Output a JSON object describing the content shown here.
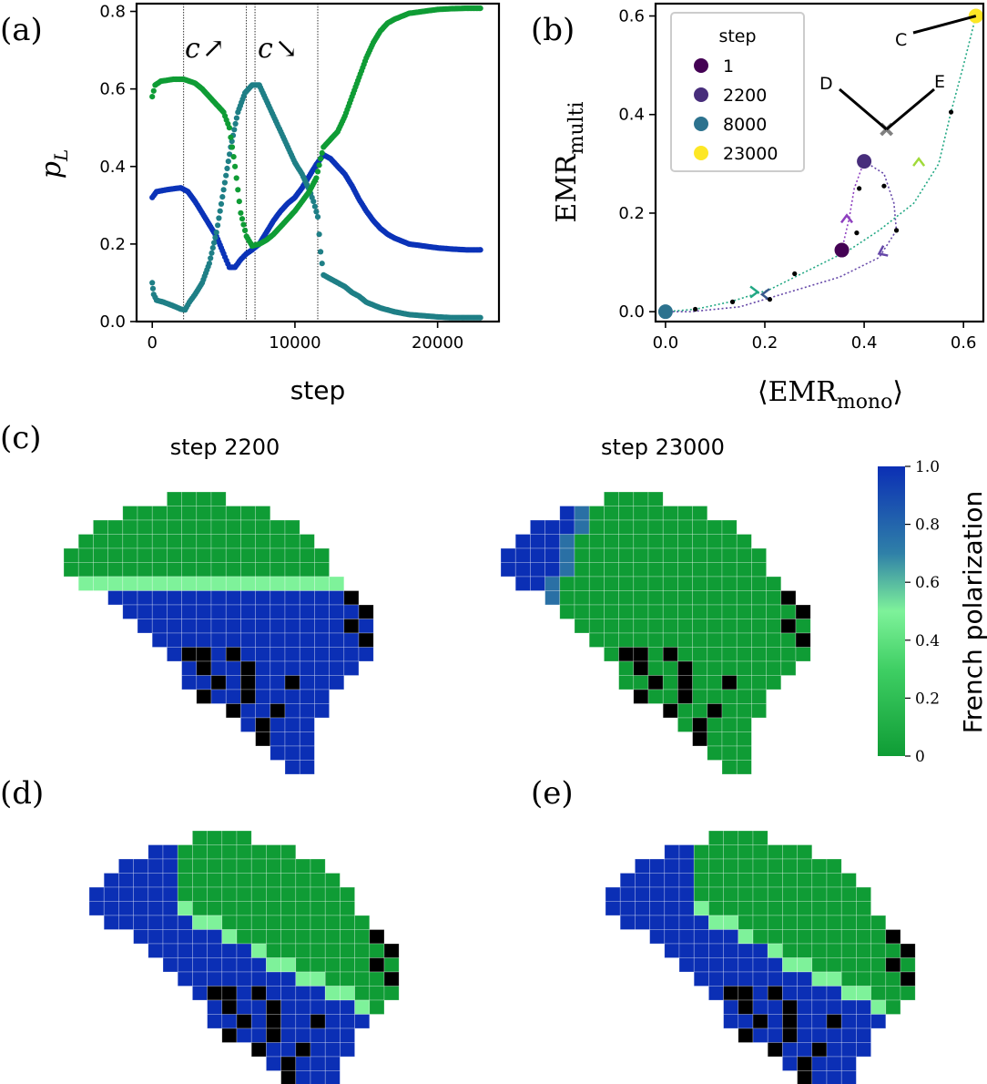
{
  "panel_labels": [
    "(a)",
    "(b)",
    "(c)",
    "(d)",
    "(e)"
  ],
  "colors": {
    "blue": "#0b33b8",
    "teal": "#1f7f86",
    "green": "#0f9c35",
    "grey": "#808080",
    "cmap_low": "#0f9c35",
    "cmap_mid": "#7ef29a",
    "cmap_high": "#0b2fb5",
    "nodata": "#000000"
  },
  "chart_data": [
    {
      "id": "a",
      "type": "scatter",
      "title": "",
      "xlabel": "step",
      "ylabel_main": "p",
      "ylabel_sub": "L",
      "xlim": [
        -1100,
        24300
      ],
      "ylim": [
        0.0,
        0.82
      ],
      "xticks": [
        "0",
        "10000",
        "20000"
      ],
      "xtick_values": [
        0,
        10000,
        20000
      ],
      "yticks": [
        "0.0",
        "0.2",
        "0.4",
        "0.6",
        "0.8"
      ],
      "ytick_values": [
        0.0,
        0.2,
        0.4,
        0.6,
        0.8
      ],
      "vlines": [
        2200,
        6600,
        7200,
        11600
      ],
      "annotations": [
        {
          "text_main": "c",
          "arrow": "↗",
          "x": 2600,
          "y": 0.74
        },
        {
          "text_main": "c",
          "arrow": "↘",
          "x": 7500,
          "y": 0.74
        }
      ],
      "series": [
        {
          "color_key": "blue",
          "points": [
            [
              0,
              0.32
            ],
            [
              300,
              0.335
            ],
            [
              1000,
              0.34
            ],
            [
              2000,
              0.345
            ],
            [
              2500,
              0.335
            ],
            [
              3000,
              0.31
            ],
            [
              3500,
              0.28
            ],
            [
              4000,
              0.25
            ],
            [
              4500,
              0.22
            ],
            [
              5000,
              0.175
            ],
            [
              5400,
              0.14
            ],
            [
              5800,
              0.14
            ],
            [
              6200,
              0.16
            ],
            [
              6600,
              0.175
            ],
            [
              7000,
              0.185
            ],
            [
              7500,
              0.2
            ],
            [
              8000,
              0.23
            ],
            [
              8500,
              0.26
            ],
            [
              9000,
              0.285
            ],
            [
              9500,
              0.305
            ],
            [
              10000,
              0.32
            ],
            [
              10500,
              0.345
            ],
            [
              11000,
              0.375
            ],
            [
              11500,
              0.405
            ],
            [
              12000,
              0.43
            ],
            [
              12500,
              0.42
            ],
            [
              13000,
              0.4
            ],
            [
              13500,
              0.38
            ],
            [
              14000,
              0.35
            ],
            [
              14500,
              0.315
            ],
            [
              15000,
              0.285
            ],
            [
              15500,
              0.26
            ],
            [
              16000,
              0.24
            ],
            [
              16500,
              0.225
            ],
            [
              17000,
              0.215
            ],
            [
              18000,
              0.2
            ],
            [
              19000,
              0.195
            ],
            [
              20000,
              0.19
            ],
            [
              21000,
              0.187
            ],
            [
              22000,
              0.185
            ],
            [
              23000,
              0.185
            ]
          ]
        },
        {
          "color_key": "teal",
          "points": [
            [
              0,
              0.1
            ],
            [
              100,
              0.07
            ],
            [
              300,
              0.055
            ],
            [
              800,
              0.05
            ],
            [
              1500,
              0.04
            ],
            [
              2000,
              0.032
            ],
            [
              2300,
              0.03
            ],
            [
              2600,
              0.05
            ],
            [
              3000,
              0.07
            ],
            [
              3500,
              0.1
            ],
            [
              4000,
              0.15
            ],
            [
              4500,
              0.23
            ],
            [
              5000,
              0.34
            ],
            [
              5500,
              0.45
            ],
            [
              6000,
              0.54
            ],
            [
              6500,
              0.59
            ],
            [
              7000,
              0.61
            ],
            [
              7500,
              0.61
            ],
            [
              8000,
              0.57
            ],
            [
              8500,
              0.53
            ],
            [
              9000,
              0.49
            ],
            [
              9500,
              0.45
            ],
            [
              10000,
              0.41
            ],
            [
              10500,
              0.38
            ],
            [
              11000,
              0.34
            ],
            [
              11300,
              0.31
            ],
            [
              11600,
              0.27
            ],
            [
              11800,
              0.18
            ],
            [
              12000,
              0.12
            ],
            [
              12500,
              0.11
            ],
            [
              13000,
              0.1
            ],
            [
              13500,
              0.09
            ],
            [
              14000,
              0.075
            ],
            [
              14500,
              0.065
            ],
            [
              15000,
              0.05
            ],
            [
              16000,
              0.035
            ],
            [
              17000,
              0.025
            ],
            [
              18000,
              0.018
            ],
            [
              20000,
              0.012
            ],
            [
              21000,
              0.01
            ],
            [
              23000,
              0.01
            ]
          ]
        },
        {
          "color_key": "green",
          "points": [
            [
              0,
              0.58
            ],
            [
              200,
              0.61
            ],
            [
              600,
              0.62
            ],
            [
              1500,
              0.625
            ],
            [
              2200,
              0.625
            ],
            [
              3000,
              0.615
            ],
            [
              3500,
              0.6
            ],
            [
              4000,
              0.58
            ],
            [
              4500,
              0.56
            ],
            [
              5000,
              0.54
            ],
            [
              5400,
              0.5
            ],
            [
              5800,
              0.4
            ],
            [
              6200,
              0.28
            ],
            [
              6600,
              0.22
            ],
            [
              7000,
              0.195
            ],
            [
              7500,
              0.2
            ],
            [
              8000,
              0.21
            ],
            [
              8500,
              0.225
            ],
            [
              9000,
              0.245
            ],
            [
              9500,
              0.265
            ],
            [
              10000,
              0.285
            ],
            [
              10500,
              0.31
            ],
            [
              11000,
              0.335
            ],
            [
              11500,
              0.37
            ],
            [
              11800,
              0.42
            ],
            [
              12000,
              0.45
            ],
            [
              12500,
              0.47
            ],
            [
              13000,
              0.49
            ],
            [
              13500,
              0.53
            ],
            [
              14000,
              0.58
            ],
            [
              14500,
              0.63
            ],
            [
              15000,
              0.68
            ],
            [
              15500,
              0.72
            ],
            [
              16000,
              0.75
            ],
            [
              16500,
              0.77
            ],
            [
              17000,
              0.78
            ],
            [
              18000,
              0.795
            ],
            [
              19000,
              0.8
            ],
            [
              20000,
              0.805
            ],
            [
              21000,
              0.807
            ],
            [
              22000,
              0.808
            ],
            [
              23000,
              0.808
            ]
          ]
        }
      ]
    },
    {
      "id": "b",
      "type": "scatter",
      "title": "",
      "xlabel": "⟨EMR",
      "xlabel_sub": "mono",
      "xlabel_close": "⟩",
      "ylabel": "EMR",
      "ylabel_sub": "multi",
      "xlim": [
        -0.02,
        0.64
      ],
      "ylim": [
        -0.02,
        0.625
      ],
      "xticks": [
        "0.0",
        "0.2",
        "0.4",
        "0.6"
      ],
      "xtick_values": [
        0.0,
        0.2,
        0.4,
        0.6
      ],
      "yticks": [
        "0.0",
        "0.2",
        "0.4",
        "0.6"
      ],
      "ytick_values": [
        0.0,
        0.2,
        0.4,
        0.6
      ],
      "legend": {
        "title": "step",
        "placement": "top-left",
        "entries": [
          "1",
          "2200",
          "8000",
          "23000"
        ]
      },
      "marked_points": [
        {
          "step": "1",
          "x": 0.355,
          "y": 0.125,
          "color": "#440154"
        },
        {
          "step": "2200",
          "x": 0.4,
          "y": 0.305,
          "color": "#472d7b"
        },
        {
          "step": "8000",
          "x": 0.0,
          "y": 0.0,
          "color": "#2c728e"
        },
        {
          "step": "23000",
          "x": 0.625,
          "y": 0.6,
          "color": "#fde725"
        }
      ],
      "path_segments": [
        {
          "color": "#8e3fbf",
          "points": [
            [
              0.355,
              0.125
            ],
            [
              0.37,
              0.19
            ],
            [
              0.38,
              0.25
            ],
            [
              0.4,
              0.305
            ]
          ]
        },
        {
          "color": "#6547a8",
          "points": [
            [
              0.4,
              0.305
            ],
            [
              0.44,
              0.28
            ],
            [
              0.46,
              0.22
            ],
            [
              0.465,
              0.165
            ],
            [
              0.43,
              0.11
            ],
            [
              0.35,
              0.07
            ],
            [
              0.25,
              0.04
            ],
            [
              0.15,
              0.01
            ],
            [
              0.05,
              0.0
            ],
            [
              0.0,
              0.0
            ]
          ]
        },
        {
          "color": "#22a884",
          "points": [
            [
              0.0,
              0.0
            ],
            [
              0.06,
              0.005
            ],
            [
              0.13,
              0.02
            ],
            [
              0.21,
              0.045
            ],
            [
              0.3,
              0.09
            ],
            [
              0.37,
              0.125
            ],
            [
              0.43,
              0.165
            ],
            [
              0.5,
              0.22
            ],
            [
              0.55,
              0.3
            ],
            [
              0.575,
              0.405
            ],
            [
              0.6,
              0.5
            ],
            [
              0.625,
              0.6
            ]
          ]
        }
      ],
      "direction_arrows": [
        {
          "x": 0.365,
          "y": 0.19,
          "color": "#8e3fbf",
          "dir": "up"
        },
        {
          "x": 0.435,
          "y": 0.12,
          "color": "#6547a8",
          "dir": "down-left"
        },
        {
          "x": 0.2,
          "y": 0.035,
          "color": "#38588c",
          "dir": "left"
        },
        {
          "x": 0.18,
          "y": 0.04,
          "color": "#22a884",
          "dir": "right"
        },
        {
          "x": 0.51,
          "y": 0.305,
          "color": "#a0da39",
          "dir": "up"
        }
      ],
      "black_points": [
        [
          0.06,
          0.005
        ],
        [
          0.135,
          0.02
        ],
        [
          0.21,
          0.025
        ],
        [
          0.26,
          0.077
        ],
        [
          0.385,
          0.16
        ],
        [
          0.39,
          0.25
        ],
        [
          0.44,
          0.255
        ],
        [
          0.465,
          0.165
        ],
        [
          0.575,
          0.405
        ]
      ],
      "fixed_point": {
        "x": 0.445,
        "y": 0.37,
        "color": "#808080",
        "marker": "x"
      },
      "labeled_points": [
        {
          "label": "C",
          "x": 0.625,
          "y": 0.6
        },
        {
          "label": "D",
          "x": 0.445,
          "y": 0.37
        },
        {
          "label": "E",
          "x": 0.445,
          "y": 0.37
        }
      ]
    }
  ],
  "maps": [
    {
      "id": "c",
      "title": "step 2200",
      "split": "horizontal-east-west"
    },
    {
      "id": "c2",
      "title": "step 23000",
      "split": "west-corner"
    },
    {
      "id": "d",
      "title": "",
      "split": "diagonal"
    },
    {
      "id": "e",
      "title": "",
      "split": "diagonal"
    }
  ],
  "colorbar": {
    "label": "French polarization",
    "ticks": [
      "1.0",
      "0.8",
      "0.6",
      "0.4",
      "0.2",
      "0"
    ],
    "tick_values": [
      1.0,
      0.8,
      0.6,
      0.4,
      0.2,
      0.0
    ],
    "range": [
      0,
      1
    ]
  }
}
